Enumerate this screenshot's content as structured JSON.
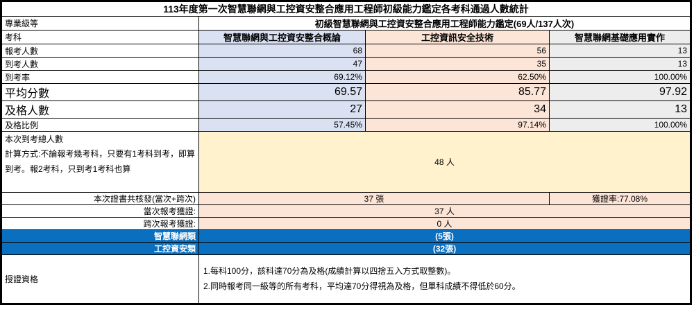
{
  "title": "113年度第一次智慧聯網與工控資安整合應用工程師初級能力鑑定各考科通過人數統計",
  "level": {
    "label": "專業級等",
    "value": "初級智慧聯網與工控資安整合應用工程師能力鑑定(69人/137人次)"
  },
  "subjects": {
    "label": "考科",
    "col1": "智慧聯網與工控資安整合概論",
    "col2": "工控資訊安全技術",
    "col3": "智慧聯網基礎應用實作"
  },
  "stats": [
    {
      "label": "報考人數",
      "v1": "68",
      "v2": "56",
      "v3": "13"
    },
    {
      "label": "到考人數",
      "v1": "47",
      "v2": "35",
      "v3": "13"
    },
    {
      "label": "到考率",
      "v1": "69.12%",
      "v2": "62.50%",
      "v3": "100.00%"
    },
    {
      "label": "平均分數",
      "v1": "69.57",
      "v2": "85.77",
      "v3": "97.92"
    },
    {
      "label": "及格人數",
      "v1": "27",
      "v2": "34",
      "v3": "13"
    },
    {
      "label": "及格比例",
      "v1": "57.45%",
      "v2": "97.14%",
      "v3": "100.00%"
    }
  ],
  "attendance": {
    "label": "本次到考總人數\n計算方式:不論報考幾考科，只要有1考科到考，即算到考。報2考科，只到考1考科也算",
    "value": "48 人"
  },
  "certificates": {
    "label": "本次證書共核發(當次+跨次)",
    "count": "37 張",
    "rate": "獲證率:77.08%"
  },
  "current_session": {
    "label": "當次報考獲證:",
    "value": "37 人"
  },
  "cross_session": {
    "label": "跨次報考獲證:",
    "value": "0 人"
  },
  "categories": [
    {
      "label": "智慧聯網類",
      "value": "(5張)"
    },
    {
      "label": "工控資安類",
      "value": "(32張)"
    }
  ],
  "qualification": {
    "label": "授證資格",
    "text": "1.每科100分，該科達70分為及格(成績計算以四捨五入方式取整數)。\n2.同時報考同一級等的所有考科，平均達70分得視為及格，但單科成績不得低於60分。"
  },
  "colors": {
    "col1_bg": "#D9E1F2",
    "col2_bg": "#FCE4D6",
    "col3_bg": "#EDEDED",
    "highlight_bg": "#FFF2CC",
    "cert_bg": "#FCE4D6",
    "category_bg": "#0B6FBF",
    "category_text": "#FFFFFF"
  }
}
